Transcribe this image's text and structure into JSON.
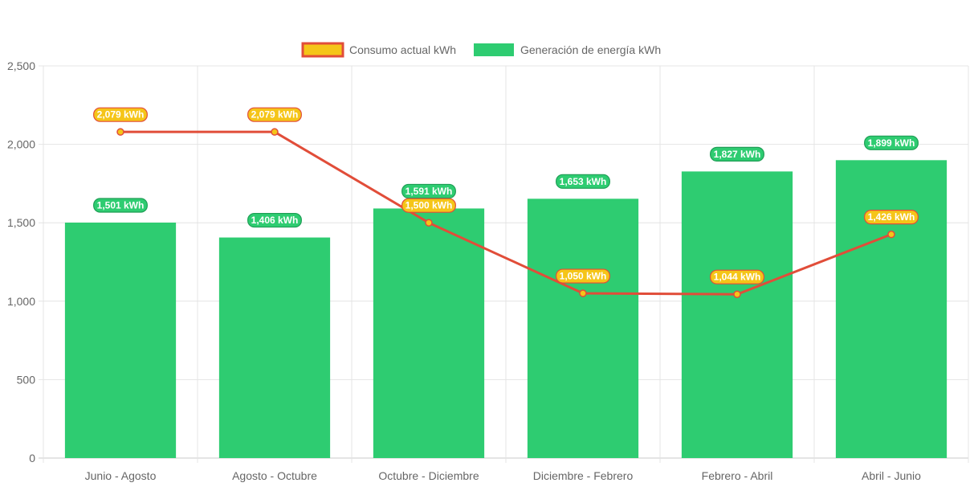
{
  "chart_data": {
    "type": "bar",
    "title": "",
    "xlabel": "",
    "ylabel": "",
    "ylim": [
      0,
      2500
    ],
    "yticks": [
      0,
      500,
      1000,
      1500,
      2000,
      2500
    ],
    "ytick_labels": [
      "0",
      "500",
      "1,000",
      "1,500",
      "2,000",
      "2,500"
    ],
    "grid": true,
    "legend_position": "top-center",
    "categories": [
      "Junio - Agosto",
      "Agosto - Octubre",
      "Octubre - Diciembre",
      "Diciembre - Febrero",
      "Febrero - Abril",
      "Abril - Junio"
    ],
    "series": [
      {
        "name": "Consumo actual kWh",
        "type": "line",
        "values": [
          2079,
          2079,
          1500,
          1050,
          1044,
          1426
        ],
        "labels": [
          "2,079 kWh",
          "2,079 kWh",
          "1,500 kWh",
          "1,050 kWh",
          "1,044 kWh",
          "1,426 kWh"
        ],
        "line_color": "#e14d39",
        "fill_color": "#f5c518",
        "point_color": "#f5c518"
      },
      {
        "name": "Generación de energía kWh",
        "type": "bar",
        "values": [
          1501,
          1406,
          1591,
          1653,
          1827,
          1899
        ],
        "labels": [
          "1,501 kWh",
          "1,406 kWh",
          "1,591 kWh",
          "1,653 kWh",
          "1,827 kWh",
          "1,899 kWh"
        ],
        "color": "#2ecc71",
        "label_border": "#1e9e55"
      }
    ]
  }
}
